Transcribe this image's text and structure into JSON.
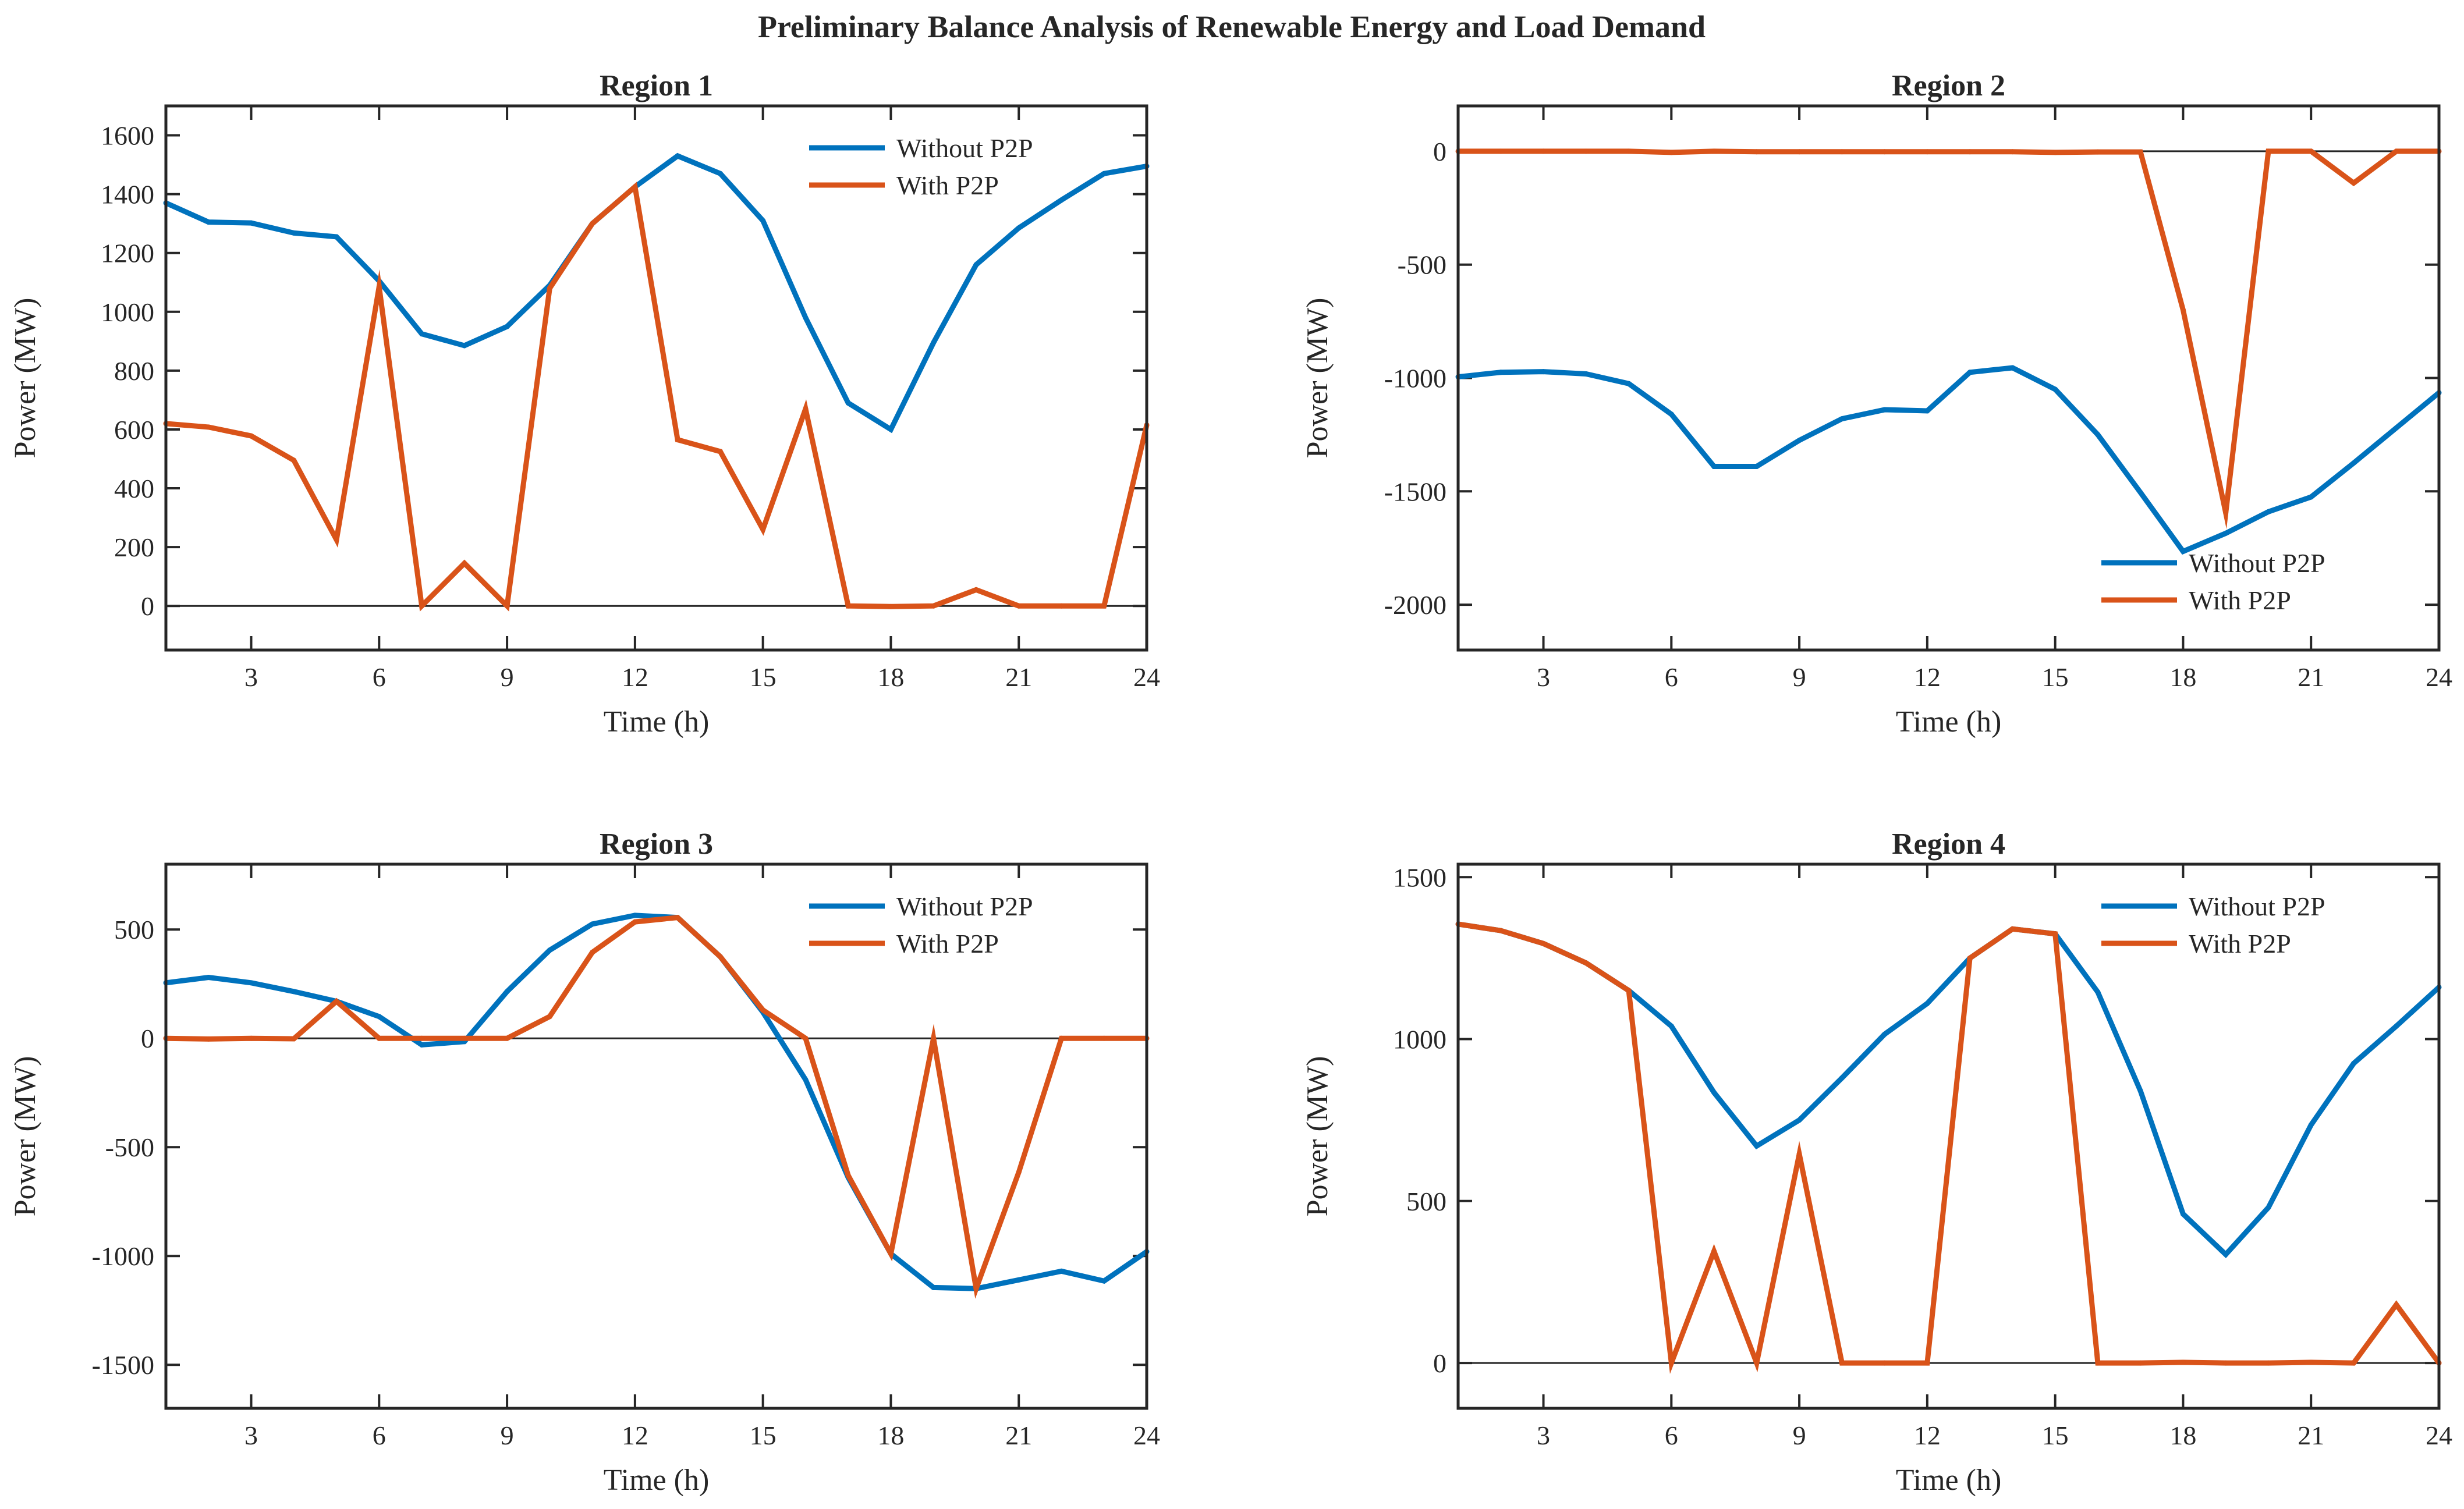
{
  "figure": {
    "title": "Preliminary Balance Analysis of Renewable Energy and Load Demand"
  },
  "colors": {
    "without": "#0072BD",
    "with": "#D95319",
    "axis": "#262626",
    "zero_line": "#262626"
  },
  "chart_data": [
    {
      "type": "line",
      "title": "Region 1",
      "xlabel": "Time (h)",
      "ylabel": "Power (MW)",
      "xlim": [
        1,
        24
      ],
      "ylim": [
        -150,
        1700
      ],
      "xticks": [
        3,
        6,
        9,
        12,
        15,
        18,
        21,
        24
      ],
      "yticks": [
        0,
        200,
        400,
        600,
        800,
        1000,
        1200,
        1400,
        1600
      ],
      "legend_position": "top-right",
      "x": [
        1,
        2,
        3,
        4,
        5,
        6,
        7,
        8,
        9,
        10,
        11,
        12,
        13,
        14,
        15,
        16,
        17,
        18,
        19,
        20,
        21,
        22,
        23,
        24
      ],
      "series": [
        {
          "name": "Without P2P",
          "color_key": "without",
          "values": [
            1370,
            1305,
            1302,
            1268,
            1255,
            1105,
            925,
            885,
            950,
            1090,
            1300,
            1425,
            1530,
            1470,
            1310,
            980,
            690,
            600,
            895,
            1160,
            1285,
            1380,
            1470,
            1495
          ]
        },
        {
          "name": "With P2P",
          "color_key": "with",
          "values": [
            620,
            608,
            578,
            495,
            225,
            1085,
            0,
            145,
            0,
            1080,
            1300,
            1425,
            565,
            525,
            260,
            670,
            0,
            -2,
            0,
            55,
            0,
            0,
            0,
            615
          ]
        }
      ]
    },
    {
      "type": "line",
      "title": "Region 2",
      "xlabel": "Time (h)",
      "ylabel": "Power (MW)",
      "xlim": [
        1,
        24
      ],
      "ylim": [
        -2200,
        200
      ],
      "xticks": [
        3,
        6,
        9,
        12,
        15,
        18,
        21,
        24
      ],
      "yticks": [
        -2000,
        -1500,
        -1000,
        -500,
        0
      ],
      "legend_position": "bottom-right",
      "x": [
        1,
        2,
        3,
        4,
        5,
        6,
        7,
        8,
        9,
        10,
        11,
        12,
        13,
        14,
        15,
        16,
        17,
        18,
        19,
        20,
        21,
        22,
        23,
        24
      ],
      "series": [
        {
          "name": "Without P2P",
          "color_key": "without",
          "values": [
            -995,
            -975,
            -972,
            -982,
            -1025,
            -1160,
            -1390,
            -1390,
            -1275,
            -1180,
            -1140,
            -1145,
            -975,
            -955,
            -1050,
            -1250,
            -1505,
            -1765,
            -1685,
            -1590,
            -1525,
            -1375,
            -1220,
            -1065
          ]
        },
        {
          "name": "With P2P",
          "color_key": "with",
          "values": [
            0,
            0,
            0,
            0,
            0,
            -5,
            0,
            -2,
            -2,
            -2,
            -2,
            -2,
            -2,
            -2,
            -5,
            -3,
            -3,
            -700,
            -1595,
            0,
            0,
            -140,
            0,
            0
          ]
        }
      ]
    },
    {
      "type": "line",
      "title": "Region 3",
      "xlabel": "Time (h)",
      "ylabel": "Power (MW)",
      "xlim": [
        1,
        24
      ],
      "ylim": [
        -1700,
        800
      ],
      "xticks": [
        3,
        6,
        9,
        12,
        15,
        18,
        21,
        24
      ],
      "yticks": [
        -1500,
        -1000,
        -500,
        0,
        500
      ],
      "legend_position": "top-right",
      "x": [
        1,
        2,
        3,
        4,
        5,
        6,
        7,
        8,
        9,
        10,
        11,
        12,
        13,
        14,
        15,
        16,
        17,
        18,
        19,
        20,
        21,
        22,
        23,
        24
      ],
      "series": [
        {
          "name": "Without P2P",
          "color_key": "without",
          "values": [
            255,
            280,
            255,
            215,
            170,
            100,
            -30,
            -15,
            215,
            405,
            525,
            565,
            555,
            375,
            120,
            -190,
            -640,
            -990,
            -1145,
            -1150,
            -1110,
            -1070,
            -1115,
            -980
          ]
        },
        {
          "name": "With P2P",
          "color_key": "with",
          "values": [
            0,
            -3,
            0,
            -2,
            170,
            0,
            0,
            0,
            0,
            100,
            395,
            535,
            555,
            375,
            130,
            0,
            -630,
            -990,
            0,
            -1150,
            -615,
            0,
            0,
            0
          ]
        }
      ]
    },
    {
      "type": "line",
      "title": "Region 4",
      "xlabel": "Time (h)",
      "ylabel": "Power (MW)",
      "xlim": [
        1,
        24
      ],
      "ylim": [
        -140,
        1540
      ],
      "xticks": [
        3,
        6,
        9,
        12,
        15,
        18,
        21,
        24
      ],
      "yticks": [
        0,
        500,
        1000,
        1500
      ],
      "legend_position": "top-right",
      "x": [
        1,
        2,
        3,
        4,
        5,
        6,
        7,
        8,
        9,
        10,
        11,
        12,
        13,
        14,
        15,
        16,
        17,
        18,
        19,
        20,
        21,
        22,
        23,
        24
      ],
      "series": [
        {
          "name": "Without P2P",
          "color_key": "without",
          "values": [
            1355,
            1335,
            1295,
            1235,
            1150,
            1040,
            835,
            670,
            750,
            880,
            1015,
            1110,
            1250,
            1340,
            1325,
            1145,
            840,
            460,
            335,
            480,
            735,
            925,
            1040,
            1160
          ]
        },
        {
          "name": "With P2P",
          "color_key": "with",
          "values": [
            1355,
            1335,
            1295,
            1235,
            1150,
            0,
            345,
            0,
            645,
            0,
            0,
            0,
            1250,
            1340,
            1325,
            0,
            0,
            2,
            0,
            0,
            2,
            0,
            180,
            0
          ]
        }
      ]
    }
  ]
}
